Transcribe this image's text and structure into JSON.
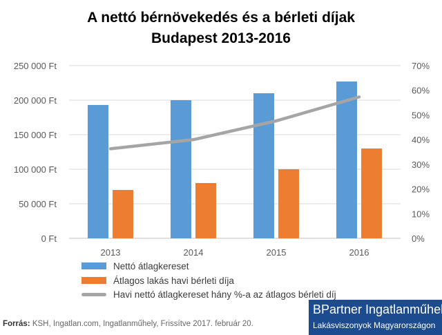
{
  "title_line1": "A nettó bérnövekedés és a bérleti díjak",
  "title_line2": "Budapest 2013-2016",
  "chart_data": {
    "type": "bar",
    "categories": [
      "2013",
      "2014",
      "2015",
      "2016"
    ],
    "series": [
      {
        "name": "Nettó átlagkereset",
        "kind": "bar",
        "axis": "left",
        "color": "#5b9bd5",
        "values": [
          193000,
          200000,
          210000,
          227000
        ]
      },
      {
        "name": "Átlagos lakás havi bérleti díja",
        "kind": "bar",
        "axis": "left",
        "color": "#ed7d31",
        "values": [
          70000,
          80000,
          100000,
          130000
        ]
      },
      {
        "name": "Havi nettó átlagkereset hány %-a az átlagos bérleti díj",
        "kind": "line",
        "axis": "right",
        "color": "#a5a5a5",
        "values": [
          36.3,
          40,
          47.6,
          57.3
        ]
      }
    ],
    "y_left": {
      "min": 0,
      "max": 250000,
      "ticks": [
        "0 Ft",
        "50 000 Ft",
        "100 000 Ft",
        "150 000 Ft",
        "200 000 Ft",
        "250 000 Ft"
      ]
    },
    "y_right": {
      "min": 0,
      "max": 70,
      "ticks": [
        "0%",
        "10%",
        "20%",
        "30%",
        "40%",
        "50%",
        "60%",
        "70%"
      ]
    },
    "grid": true,
    "legend_position": "bottom-left"
  },
  "source": {
    "label": "Forrás:",
    "text": " KSH, Ingatlan.com, Ingatlanműhely, Frissítve 2017. február 20."
  },
  "brand": {
    "name": "BPartner Ingatlanműhely",
    "tagline": "Lakásviszonyok Magyarországon",
    "color": "#1d4b8f"
  }
}
